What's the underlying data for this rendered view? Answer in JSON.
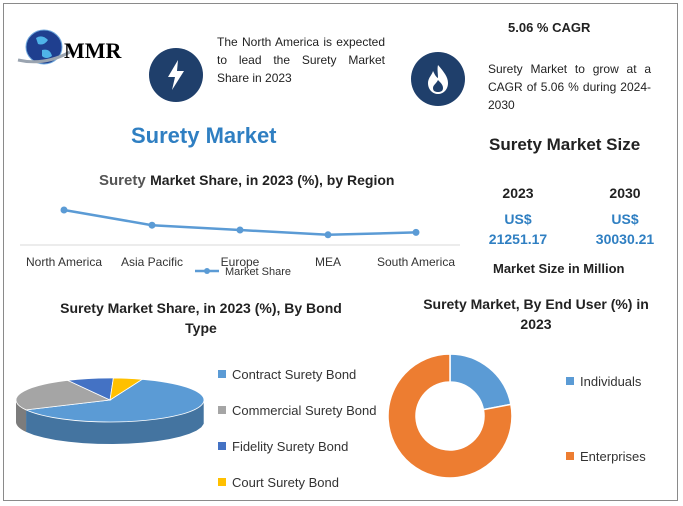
{
  "brand": {
    "logo_text": "MMR"
  },
  "highlight_left": {
    "text": "The North America is expected to lead the Surety Market Share in 2023"
  },
  "highlight_right": {
    "cagr_title": "5.06 % CAGR",
    "text": "Surety Market to grow at a CAGR of 5.06 % during 2024-2030"
  },
  "main_title": "Surety Market",
  "market_size": {
    "title": "Surety Market Size",
    "years": [
      {
        "year": "2023",
        "currency": "US$",
        "value": "21251.17"
      },
      {
        "year": "2030",
        "currency": "US$",
        "value": "30030.21"
      }
    ],
    "unit_label": "Market Size in Million"
  },
  "colors": {
    "accent": "#2f7fc2",
    "dark_icon": "#1f3f6b",
    "line": "#5b9bd5",
    "gray": "#a5a5a5",
    "blue_dark": "#4472c4",
    "gold": "#ffc000",
    "orange": "#ed7d31"
  },
  "chart_data": [
    {
      "type": "line",
      "title_prefix": "Surety",
      "title": "Market Share, in 2023 (%), by Region",
      "categories": [
        "North America",
        "Asia Pacific",
        "Europe",
        "MEA",
        "South America"
      ],
      "series": [
        {
          "name": "Market Share",
          "values": [
            40,
            21,
            15,
            9,
            12
          ]
        }
      ],
      "ylim": [
        0,
        50
      ],
      "grid": false,
      "legend": "bottom"
    },
    {
      "type": "pie",
      "title": "Surety Market Share, in 2023 (%), By Bond Type",
      "labels": [
        "Contract Surety Bond",
        "Commercial Surety Bond",
        "Fidelity Surety Bond",
        "Court Surety Bond"
      ],
      "values": [
        62,
        25,
        8,
        5
      ],
      "colors": [
        "#5b9bd5",
        "#a5a5a5",
        "#4472c4",
        "#ffc000"
      ],
      "legend": "right"
    },
    {
      "type": "pie",
      "title": "Surety Market, By End User (%) in 2023",
      "labels": [
        "Individuals",
        "Enterprises"
      ],
      "values": [
        22,
        78
      ],
      "colors": [
        "#5b9bd5",
        "#ed7d31"
      ],
      "legend": "right"
    }
  ]
}
